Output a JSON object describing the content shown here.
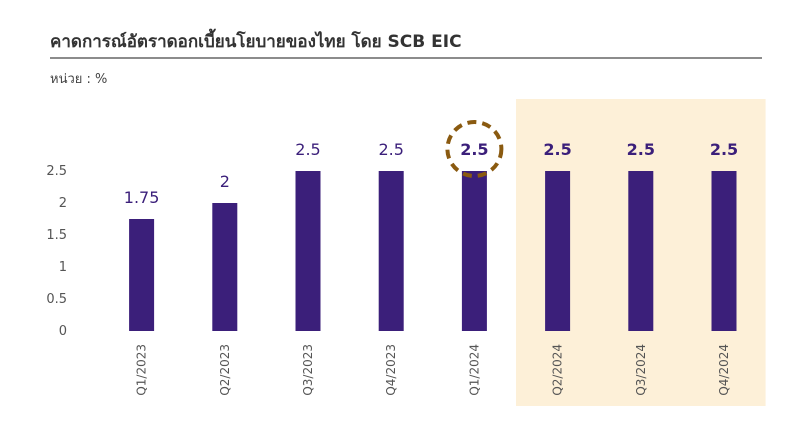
{
  "header": {
    "title": "คาดการณ์อัตราดอกเบี้ยนโยบายของไทย โดย SCB EIC",
    "unit": "หน่วย : %"
  },
  "colors": {
    "bar": "#3b1f7a",
    "label": "#3b1f7a",
    "forecast_bg": "#fdf0d8",
    "highlight_ring": "#8a5a10",
    "axis_text": "#555555"
  },
  "chart_data": {
    "type": "bar",
    "title": "คาดการณ์อัตราดอกเบี้ยนโยบายของไทย โดย SCB EIC",
    "ylabel": "หน่วย : %",
    "xlabel": "",
    "categories": [
      "Q1/2023",
      "Q2/2023",
      "Q3/2023",
      "Q4/2023",
      "Q1/2024",
      "Q2/2024",
      "Q3/2024",
      "Q4/2024"
    ],
    "values": [
      1.75,
      2,
      2.5,
      2.5,
      2.5,
      2.5,
      2.5,
      2.5
    ],
    "data_labels": [
      "1.75",
      "2",
      "2.5",
      "2.5",
      "2.5",
      "2.5",
      "2.5",
      "2.5"
    ],
    "yticks": [
      "0",
      "0.5",
      "1",
      "1.5",
      "2",
      "2.5"
    ],
    "ylim": [
      0,
      2.5
    ],
    "grid": false,
    "highlighted_category": "Q1/2024",
    "shaded_categories": [
      "Q2/2024",
      "Q3/2024",
      "Q4/2024"
    ]
  }
}
